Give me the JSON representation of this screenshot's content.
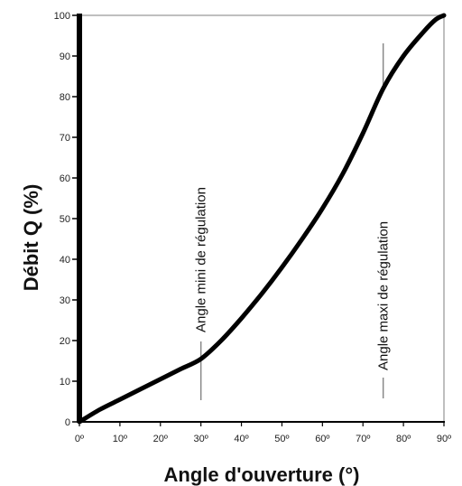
{
  "chart_data": {
    "type": "line",
    "title": "",
    "xlabel": "Angle d'ouverture (°)",
    "ylabel": "Débit Q (%)",
    "xlim": [
      0,
      90
    ],
    "ylim": [
      0,
      100
    ],
    "x_ticks": [
      "0º",
      "10º",
      "20º",
      "30º",
      "40º",
      "50º",
      "60º",
      "70º",
      "80º",
      "90º"
    ],
    "y_ticks": [
      "0",
      "10",
      "20",
      "30",
      "40",
      "50",
      "60",
      "70",
      "80",
      "90",
      "100"
    ],
    "grid": false,
    "series": [
      {
        "x": [
          0,
          5,
          10,
          15,
          20,
          25,
          30,
          35,
          40,
          45,
          50,
          55,
          60,
          65,
          70,
          75,
          80,
          85,
          88,
          90
        ],
        "y": [
          0,
          3,
          5.5,
          8,
          10.5,
          13,
          15.5,
          20,
          25.5,
          31.5,
          38,
          45,
          52.5,
          61,
          71,
          82,
          90,
          96,
          99,
          100
        ]
      }
    ],
    "annotations": [
      {
        "text": "Angle mini de régulation",
        "x": 30
      },
      {
        "text": "Angle maxi de régulation",
        "x": 75
      }
    ],
    "colors": {
      "line": "#000000",
      "axis": "#000000",
      "frame": "#aaaaaa",
      "marker": "#888888"
    }
  }
}
